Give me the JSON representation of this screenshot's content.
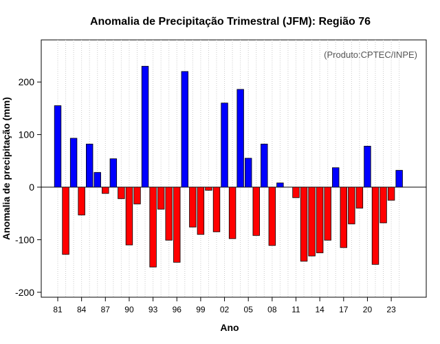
{
  "chart_data": {
    "type": "bar",
    "title": "Anomalia de Precipitação Trimestral (JFM): Região 76",
    "xlabel": "Ano",
    "ylabel": "Anomalia de precipitação (mm)",
    "credit": "(Produto:CPTEC/INPE)",
    "ylim": [
      -200,
      280
    ],
    "yticks": [
      -200,
      -100,
      0,
      100,
      200
    ],
    "xtick_labels": [
      "81",
      "84",
      "87",
      "90",
      "93",
      "96",
      "99",
      "02",
      "05",
      "08",
      "11",
      "14",
      "17",
      "20",
      "23"
    ],
    "categories": [
      "1981",
      "1982",
      "1983",
      "1984",
      "1985",
      "1986",
      "1987",
      "1988",
      "1989",
      "1990",
      "1991",
      "1992",
      "1993",
      "1994",
      "1995",
      "1996",
      "1997",
      "1998",
      "1999",
      "2000",
      "2001",
      "2002",
      "2003",
      "2004",
      "2005",
      "2006",
      "2007",
      "2008",
      "2009",
      "2010",
      "2011",
      "2012",
      "2013",
      "2014",
      "2015",
      "2016",
      "2017",
      "2018",
      "2019",
      "2020",
      "2021",
      "2022",
      "2023",
      "2024"
    ],
    "values": [
      155,
      -128,
      93,
      -53,
      82,
      28,
      -12,
      54,
      -22,
      -110,
      -32,
      230,
      -152,
      -42,
      -101,
      -143,
      220,
      -76,
      -90,
      -6,
      -85,
      160,
      -98,
      186,
      55,
      -92,
      82,
      -111,
      8,
      0,
      -20,
      -141,
      -131,
      -125,
      -101,
      37,
      -115,
      -70,
      -40,
      78,
      -147,
      -68,
      -25,
      32
    ],
    "colors": {
      "positive": "#0000ff",
      "negative": "#ff0000",
      "grid": "#c8c8c8"
    },
    "grid": true
  }
}
